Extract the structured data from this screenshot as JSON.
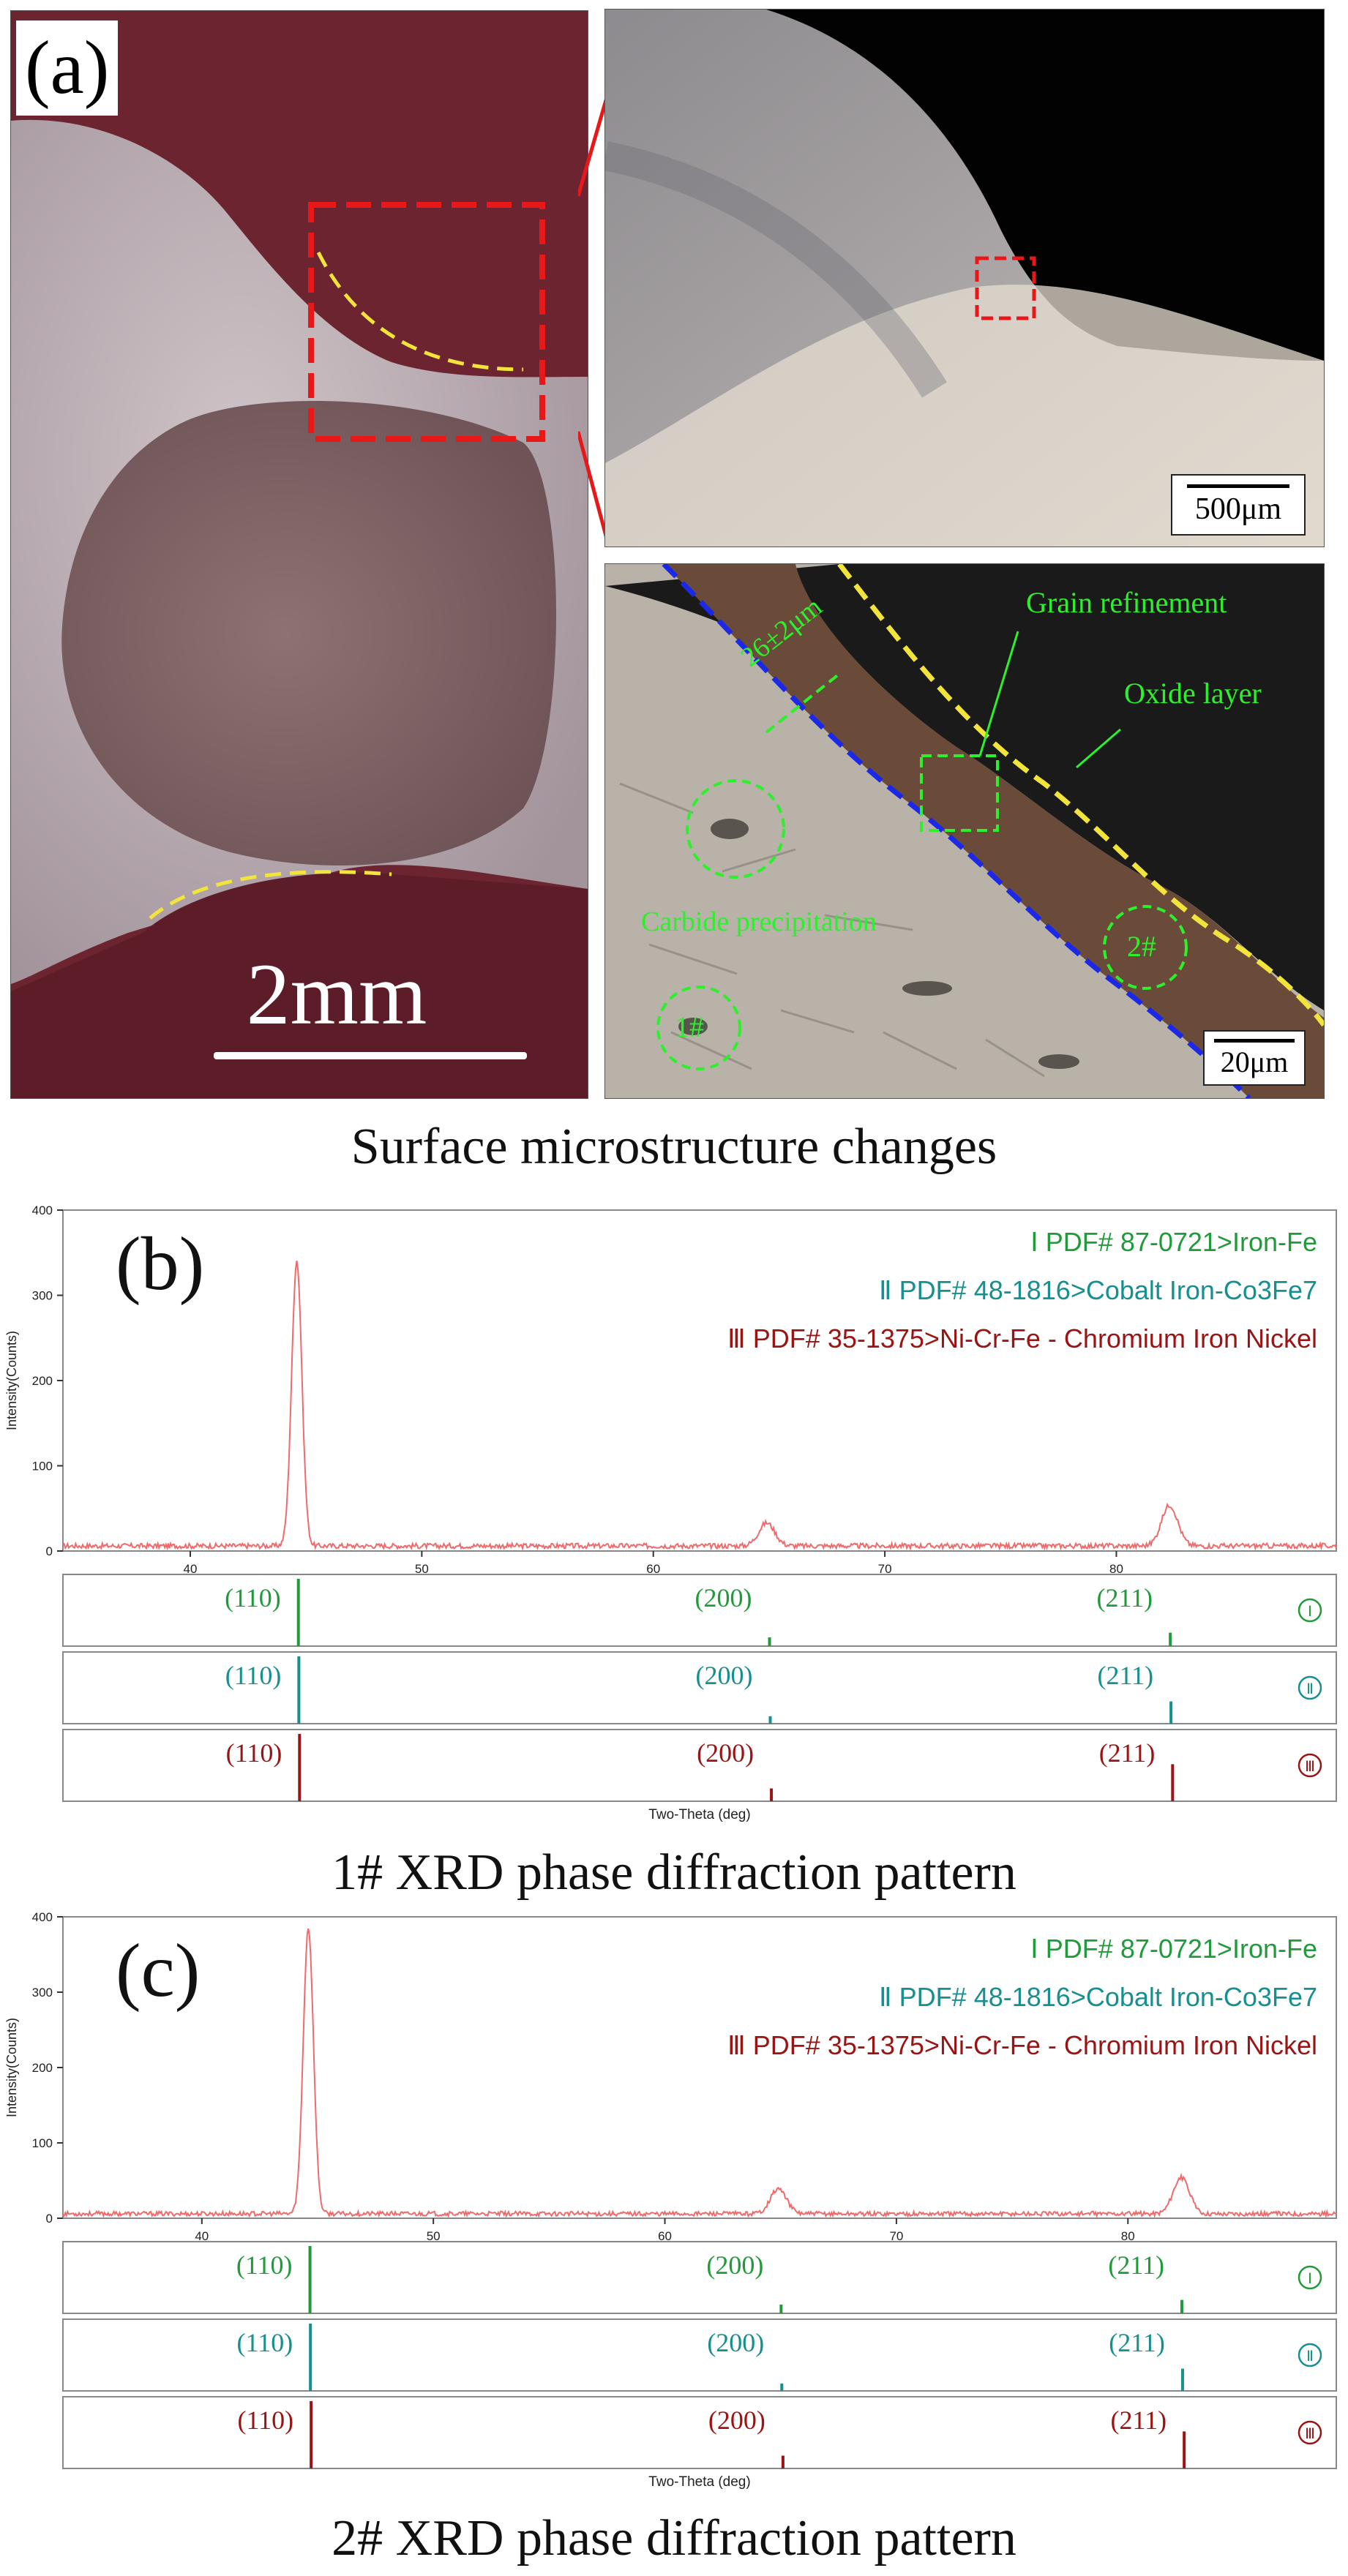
{
  "panel_a": {
    "label": "(a)",
    "scale_main": "2mm",
    "scale_top": "500μm",
    "scale_bottom": "20μm",
    "annotations": {
      "grain_refinement": "Grain refinement",
      "oxide_layer": "Oxide layer",
      "thickness": "26±2μm",
      "carbide": "Carbide precipitation",
      "point1": "1#",
      "point2": "2#"
    },
    "caption": "Surface microstructure changes"
  },
  "colors": {
    "iron": "#1f9b3a",
    "cobalt": "#168f8f",
    "nickel": "#9b1414",
    "pattern": "#ef6b6b",
    "green_annot": "#2cf02c"
  },
  "chart_data": [
    {
      "type": "line",
      "label": "(b)",
      "caption": "1# XRD phase diffraction pattern",
      "xlabel": "Two-Theta (deg)",
      "ylabel": "Intensity(Counts)",
      "xlim": [
        34.5,
        89.5
      ],
      "ylim": [
        0,
        400
      ],
      "xticks": [
        40,
        50,
        60,
        70,
        80
      ],
      "yticks": [
        0,
        100,
        200,
        300,
        400
      ],
      "peaks": [
        {
          "x": 44.6,
          "y": 335,
          "w": 0.22
        },
        {
          "x": 64.9,
          "y": 27,
          "w": 0.35
        },
        {
          "x": 82.3,
          "y": 48,
          "w": 0.35
        }
      ],
      "legend": [
        {
          "marker": "Ⅰ",
          "text": "PDF# 87-0721>Iron-Fe",
          "color": "#1f9b3a"
        },
        {
          "marker": "Ⅱ",
          "text": "PDF# 48-1816>Cobalt Iron-Co3Fe7",
          "color": "#168f8f"
        },
        {
          "marker": "Ⅲ",
          "text": "PDF# 35-1375>Ni-Cr-Fe - Chromium Iron Nickel",
          "color": "#9b1414"
        }
      ],
      "references": [
        {
          "marker": "Ⅰ",
          "color": "#1f9b3a",
          "lines": [
            {
              "x": 44.67,
              "h": 1.0
            },
            {
              "x": 65.02,
              "h": 0.13
            },
            {
              "x": 82.33,
              "h": 0.2
            }
          ],
          "hkl": [
            "(110)",
            "(200)",
            "(211)"
          ]
        },
        {
          "marker": "Ⅱ",
          "color": "#168f8f",
          "lines": [
            {
              "x": 44.69,
              "h": 1.0
            },
            {
              "x": 65.05,
              "h": 0.11
            },
            {
              "x": 82.36,
              "h": 0.33
            }
          ],
          "hkl": [
            "(110)",
            "(200)",
            "(211)"
          ]
        },
        {
          "marker": "Ⅲ",
          "color": "#9b1414",
          "lines": [
            {
              "x": 44.72,
              "h": 1.0
            },
            {
              "x": 65.1,
              "h": 0.19
            },
            {
              "x": 82.43,
              "h": 0.55
            }
          ],
          "hkl": [
            "(110)",
            "(200)",
            "(211)"
          ]
        }
      ]
    },
    {
      "type": "line",
      "label": "(c)",
      "caption": "2# XRD phase diffraction pattern",
      "xlabel": "Two-Theta (deg)",
      "ylabel": "Intensity(Counts)",
      "xlim": [
        34,
        89
      ],
      "ylim": [
        0,
        400
      ],
      "xticks": [
        40,
        50,
        60,
        70,
        80
      ],
      "yticks": [
        0,
        100,
        200,
        300,
        400
      ],
      "peaks": [
        {
          "x": 44.6,
          "y": 380,
          "w": 0.22
        },
        {
          "x": 64.9,
          "y": 33,
          "w": 0.35
        },
        {
          "x": 82.3,
          "y": 48,
          "w": 0.35
        }
      ],
      "legend": [
        {
          "marker": "Ⅰ",
          "text": "PDF# 87-0721>Iron-Fe",
          "color": "#1f9b3a"
        },
        {
          "marker": "Ⅱ",
          "text": "PDF# 48-1816>Cobalt Iron-Co3Fe7",
          "color": "#168f8f"
        },
        {
          "marker": "Ⅲ",
          "text": "PDF# 35-1375>Ni-Cr-Fe - Chromium Iron Nickel",
          "color": "#9b1414"
        }
      ],
      "references": [
        {
          "marker": "Ⅰ",
          "color": "#1f9b3a",
          "lines": [
            {
              "x": 44.67,
              "h": 1.0
            },
            {
              "x": 65.02,
              "h": 0.13
            },
            {
              "x": 82.33,
              "h": 0.2
            }
          ],
          "hkl": [
            "(110)",
            "(200)",
            "(211)"
          ]
        },
        {
          "marker": "Ⅱ",
          "color": "#168f8f",
          "lines": [
            {
              "x": 44.69,
              "h": 1.0
            },
            {
              "x": 65.05,
              "h": 0.11
            },
            {
              "x": 82.36,
              "h": 0.33
            }
          ],
          "hkl": [
            "(110)",
            "(200)",
            "(211)"
          ]
        },
        {
          "marker": "Ⅲ",
          "color": "#9b1414",
          "lines": [
            {
              "x": 44.72,
              "h": 1.0
            },
            {
              "x": 65.1,
              "h": 0.19
            },
            {
              "x": 82.43,
              "h": 0.55
            }
          ],
          "hkl": [
            "(110)",
            "(200)",
            "(211)"
          ]
        }
      ]
    }
  ]
}
